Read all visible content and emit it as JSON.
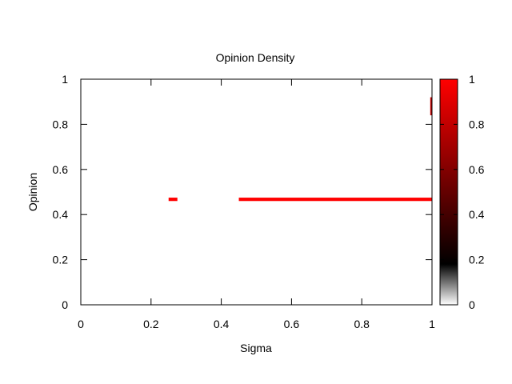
{
  "chart_data": {
    "type": "heatmap",
    "title": "Opinion Density",
    "xlabel": "Sigma",
    "ylabel": "Opinion",
    "xlim": [
      0,
      1
    ],
    "ylim": [
      0,
      1
    ],
    "x_ticks": [
      0,
      0.2,
      0.4,
      0.6,
      0.8,
      1
    ],
    "y_ticks": [
      0,
      0.2,
      0.4,
      0.6,
      0.8,
      1
    ],
    "colorbar": {
      "range": [
        0,
        1
      ],
      "ticks": [
        0,
        0.2,
        0.4,
        0.6,
        0.8,
        1
      ],
      "colors": [
        "#ffffff",
        "#000000",
        "#ff0000"
      ]
    },
    "cells": [
      {
        "x0": 0.25,
        "x1": 0.275,
        "y0": 0.46,
        "y1": 0.475,
        "value": 1.0
      },
      {
        "x0": 0.45,
        "x1": 1.0,
        "y0": 0.46,
        "y1": 0.475,
        "value": 1.0
      },
      {
        "x0": 0.995,
        "x1": 1.0,
        "y0": 0.84,
        "y1": 0.92,
        "value": 0.8
      }
    ]
  }
}
